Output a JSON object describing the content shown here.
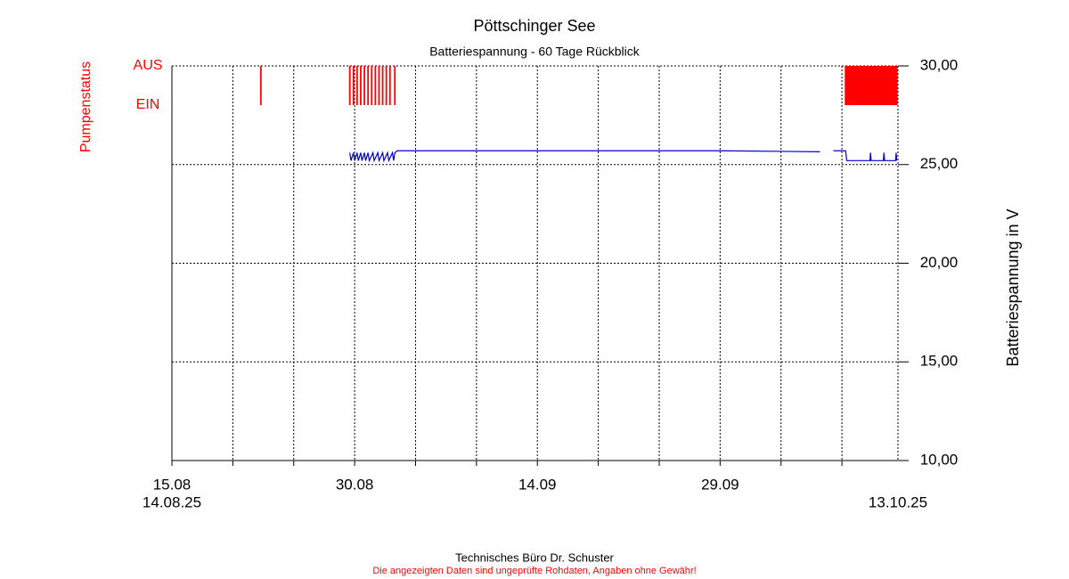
{
  "chart_data": {
    "type": "line",
    "title": "Pöttschinger See",
    "subtitle": "Batteriespannung - 60 Tage Rückblick",
    "y_label": "Batteriespannung in V",
    "ylim": [
      10,
      30
    ],
    "yticks": [
      {
        "value": 10,
        "label": "10,00"
      },
      {
        "value": 15,
        "label": "15,00"
      },
      {
        "value": 20,
        "label": "20,00"
      },
      {
        "value": 25,
        "label": "25,00"
      },
      {
        "value": 30,
        "label": "30,00"
      }
    ],
    "xlim": [
      0,
      59.6
    ],
    "xticks": [
      {
        "value": 0,
        "label": "15.08"
      },
      {
        "value": 15,
        "label": "30.08"
      },
      {
        "value": 30,
        "label": "14.09"
      },
      {
        "value": 45,
        "label": "29.09"
      }
    ],
    "xminor": [
      5,
      10,
      20,
      25,
      35,
      40,
      50,
      55
    ],
    "start_label": "14.08.25",
    "end_label": "13.10.25",
    "grid": true,
    "series": [
      {
        "color": "#0000cc",
        "x": [
          14.6,
          14.7,
          14.9,
          15.0,
          15.2,
          15.3,
          15.5,
          15.6,
          15.8,
          15.9,
          16.1,
          16.2,
          16.5,
          16.6,
          16.9,
          17.0,
          17.3,
          17.4,
          17.7,
          17.8,
          18.1,
          18.2,
          18.3,
          18.5,
          25,
          35,
          45,
          53.2,
          53.5,
          54.3,
          55.0,
          55.3,
          55.4,
          57.3,
          57.35,
          57.4,
          58.4,
          58.45,
          58.5,
          59.4,
          59.45,
          59.5
        ],
        "values": [
          25.6,
          25.2,
          25.6,
          25.2,
          25.6,
          25.2,
          25.6,
          25.2,
          25.6,
          25.2,
          25.6,
          25.2,
          25.6,
          25.2,
          25.6,
          25.2,
          25.6,
          25.2,
          25.6,
          25.2,
          25.6,
          25.2,
          25.6,
          25.7,
          25.7,
          25.7,
          25.7,
          25.65,
          null,
          25.7,
          25.7,
          25.7,
          25.2,
          25.2,
          25.6,
          25.2,
          25.2,
          25.6,
          25.2,
          25.2,
          25.6,
          25.2
        ]
      }
    ],
    "pump": {
      "label": "Pumpenstatus",
      "color": "#ff0000",
      "levels": [
        {
          "value": 1,
          "label": "AUS"
        },
        {
          "value": 0,
          "label": "EIN"
        }
      ],
      "start": [
        7.3,
        14.6,
        14.9,
        15.2,
        15.5,
        15.8,
        16.1,
        16.4,
        16.7,
        17.0,
        17.3,
        17.6,
        17.9,
        18.3,
        55.3,
        57.4
      ],
      "end": [
        7.3,
        14.6,
        14.9,
        15.2,
        15.5,
        15.8,
        16.1,
        16.4,
        16.7,
        17.0,
        17.3,
        17.6,
        17.9,
        18.3,
        57.3,
        59.5
      ]
    },
    "footer": "Technisches Büro Dr. Schuster",
    "disclaimer": "Die angezeigten Daten sind ungeprüfte Rohdaten, Angaben ohne Gewähr!"
  }
}
